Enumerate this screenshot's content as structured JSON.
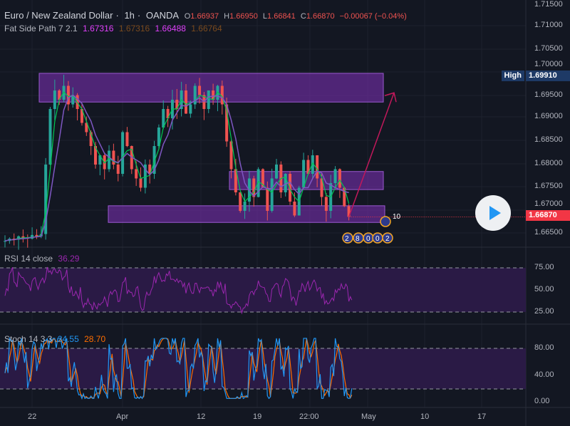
{
  "header": {
    "symbol": "Euro / New Zealand Dollar",
    "interval": "1h",
    "exchange": "OANDA",
    "o_label": "O",
    "o": "1.66937",
    "h_label": "H",
    "h": "1.66950",
    "l_label": "L",
    "l": "1.66841",
    "c_label": "C",
    "c": "1.66870",
    "change": "−0.00067 (−0.04%)"
  },
  "indicator": {
    "name": "Fat Side Path 7 2.1",
    "values": [
      "1.67316",
      "1.67316",
      "1.66488",
      "1.66764"
    ],
    "colors": [
      "#e040fb",
      "#7a4a1e",
      "#e040fb",
      "#7a4a1e"
    ]
  },
  "rsi": {
    "label": "RSI 14 close",
    "value": "36.29",
    "ticks": [
      "75.00",
      "50.00",
      "25.00"
    ]
  },
  "stoch": {
    "label": "Stoch 14 3 3",
    "k": "24.55",
    "d": "28.70",
    "ticks": [
      "80.00",
      "40.00",
      "0.00"
    ]
  },
  "price_axis": {
    "ticks": [
      "1.71500",
      "1.71000",
      "1.70500",
      "1.70000",
      "1.69500",
      "1.69000",
      "1.68500",
      "1.68000",
      "1.67500",
      "1.67000",
      "1.66500"
    ]
  },
  "high_tag": {
    "label": "High",
    "price": "1.69910"
  },
  "last_price": "1.66870",
  "time_axis": [
    "22",
    "Apr",
    "12",
    "19",
    "22:00",
    "May",
    "10",
    "17"
  ],
  "events": [
    "10",
    "2",
    "8",
    "0",
    "0",
    "2"
  ],
  "colors": {
    "up": "#26a69a",
    "down": "#ef5350",
    "zone": "#6a2c9a",
    "rsi": "#9c27b0",
    "stoch_k": "#2196f3",
    "stoch_d": "#ff6d00",
    "last": "#f23645",
    "high": "#1e3a66"
  },
  "chart_data": {
    "type": "candlestick",
    "title": "Euro / New Zealand Dollar · 1h · OANDA",
    "ylim": [
      1.6605,
      1.7155
    ],
    "closes": [
      1.6635,
      1.664,
      1.6638,
      1.6645,
      1.6642,
      1.664,
      1.6648,
      1.6645,
      1.665,
      1.68,
      1.692,
      1.696,
      1.694,
      1.697,
      1.693,
      1.695,
      1.692,
      1.689,
      1.687,
      1.684,
      1.68,
      1.682,
      1.679,
      1.683,
      1.68,
      1.678,
      1.687,
      1.684,
      1.679,
      1.677,
      1.675,
      1.68,
      1.678,
      1.684,
      1.688,
      1.692,
      1.69,
      1.694,
      1.692,
      1.696,
      1.691,
      1.693,
      1.697,
      1.695,
      1.692,
      1.696,
      1.694,
      1.697,
      1.693,
      1.685,
      1.679,
      1.674,
      1.67,
      1.672,
      1.677,
      1.673,
      1.679,
      1.675,
      1.67,
      1.677,
      1.68,
      1.674,
      1.678,
      1.672,
      1.669,
      1.675,
      1.681,
      1.678,
      1.682,
      1.677,
      1.673,
      1.67,
      1.676,
      1.679,
      1.675,
      1.671,
      1.6687
    ],
    "zones": [
      [
        1.6997,
        1.6935
      ],
      [
        1.6785,
        1.6746
      ],
      [
        1.6711,
        1.6675
      ]
    ],
    "projection": {
      "from": 1.6687,
      "to": 1.6955
    }
  }
}
